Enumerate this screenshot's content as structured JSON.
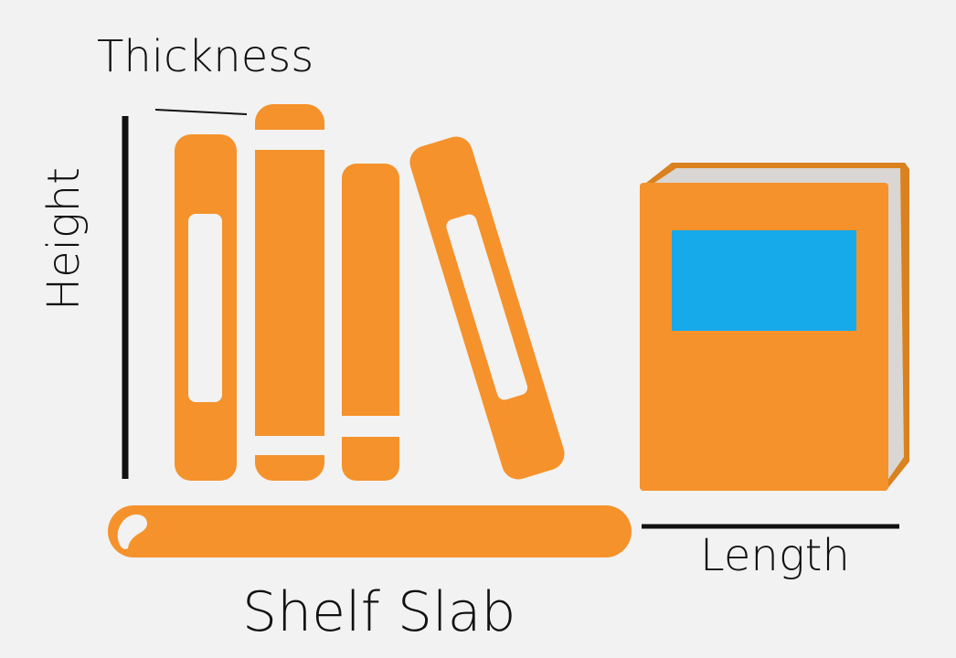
{
  "labels": {
    "thickness": "Thickness",
    "height": "Height",
    "length": "Length",
    "shelf_slab": "Shelf Slab"
  },
  "colors": {
    "background": "#f2f2f2",
    "book_orange": "#f5922b",
    "book_edge": "#d9821f",
    "pages": "#d9d6d3",
    "cover_label": "#17aaea",
    "line": "#111111",
    "cutout": "#f2f2f2"
  }
}
